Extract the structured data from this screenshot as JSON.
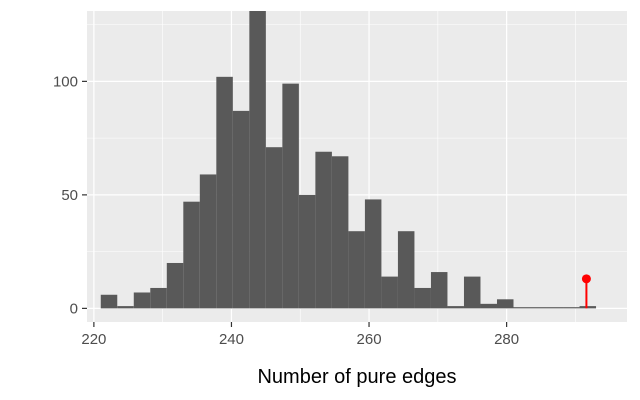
{
  "chart_data": {
    "type": "bar",
    "subtype": "histogram",
    "title": "",
    "xlabel": "Number of pure edges",
    "ylabel": "",
    "xlim": [
      219,
      297.5
    ],
    "ylim": [
      -6,
      131
    ],
    "x_ticks": [
      220,
      240,
      260,
      280
    ],
    "x_tick_labels": [
      "220",
      "240",
      "260",
      "280"
    ],
    "y_ticks": [
      0,
      50,
      100
    ],
    "y_tick_labels": [
      "0",
      "50",
      "100"
    ],
    "grid": true,
    "bar_color": "#595959",
    "panel_background": "#ebebeb",
    "gridline_color": "#ffffff",
    "bins": [
      {
        "x0": 221.0,
        "x1": 223.4,
        "value": 6
      },
      {
        "x0": 223.4,
        "x1": 225.8,
        "value": 1
      },
      {
        "x0": 225.8,
        "x1": 228.2,
        "value": 7
      },
      {
        "x0": 228.2,
        "x1": 230.6,
        "value": 9
      },
      {
        "x0": 230.6,
        "x1": 233.0,
        "value": 20
      },
      {
        "x0": 233.0,
        "x1": 235.4,
        "value": 47
      },
      {
        "x0": 235.4,
        "x1": 237.8,
        "value": 59
      },
      {
        "x0": 237.8,
        "x1": 240.2,
        "value": 102
      },
      {
        "x0": 240.2,
        "x1": 242.6,
        "value": 87
      },
      {
        "x0": 242.6,
        "x1": 245.0,
        "value": 131
      },
      {
        "x0": 245.0,
        "x1": 247.4,
        "value": 71
      },
      {
        "x0": 247.4,
        "x1": 249.8,
        "value": 99
      },
      {
        "x0": 249.8,
        "x1": 252.2,
        "value": 50
      },
      {
        "x0": 252.2,
        "x1": 254.6,
        "value": 69
      },
      {
        "x0": 254.6,
        "x1": 257.0,
        "value": 67
      },
      {
        "x0": 257.0,
        "x1": 259.4,
        "value": 34
      },
      {
        "x0": 259.4,
        "x1": 261.8,
        "value": 48
      },
      {
        "x0": 261.8,
        "x1": 264.2,
        "value": 14
      },
      {
        "x0": 264.2,
        "x1": 266.6,
        "value": 34
      },
      {
        "x0": 266.6,
        "x1": 269.0,
        "value": 9
      },
      {
        "x0": 269.0,
        "x1": 271.4,
        "value": 16
      },
      {
        "x0": 271.4,
        "x1": 273.8,
        "value": 1
      },
      {
        "x0": 273.8,
        "x1": 276.2,
        "value": 14
      },
      {
        "x0": 276.2,
        "x1": 278.6,
        "value": 2
      },
      {
        "x0": 278.6,
        "x1": 281.0,
        "value": 4
      },
      {
        "x0": 281.0,
        "x1": 283.4,
        "value": 0
      },
      {
        "x0": 283.4,
        "x1": 285.8,
        "value": 0
      },
      {
        "x0": 285.8,
        "x1": 288.2,
        "value": 0
      },
      {
        "x0": 288.2,
        "x1": 290.6,
        "value": 0
      },
      {
        "x0": 290.6,
        "x1": 293.0,
        "value": 1
      }
    ],
    "observed_marker": {
      "x": 291.6,
      "value": 13,
      "color": "#ff0000"
    }
  }
}
